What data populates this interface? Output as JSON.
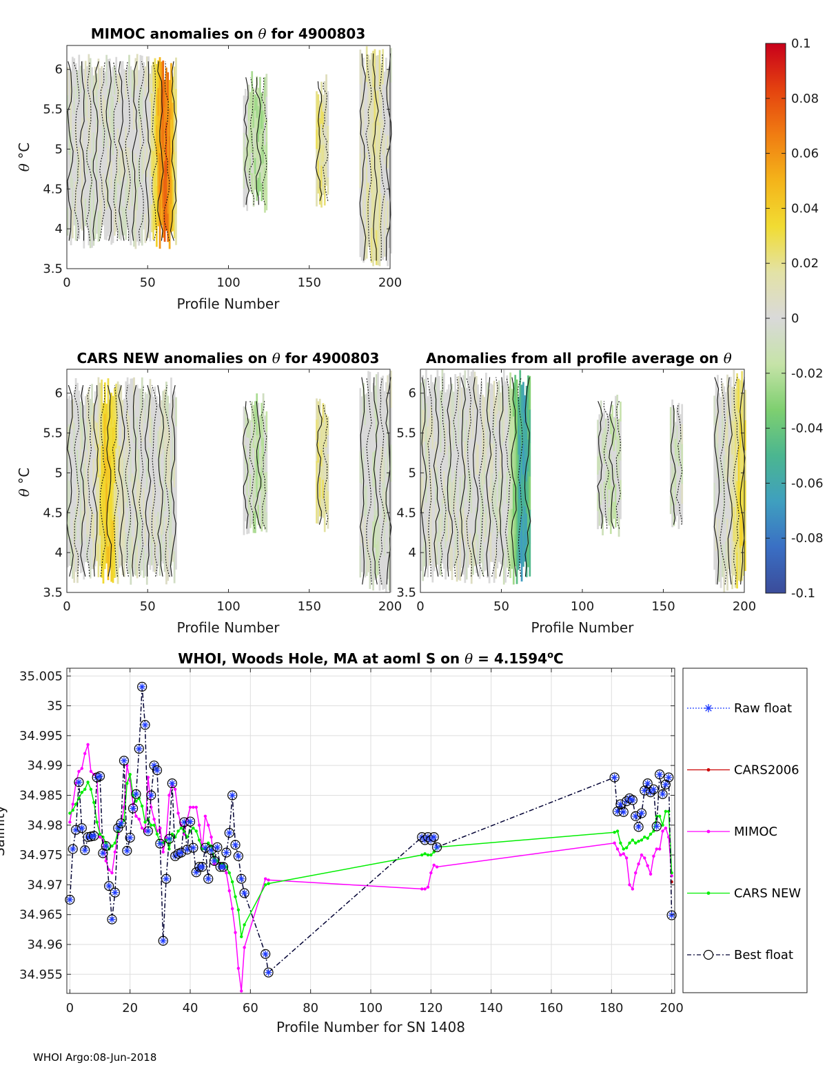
{
  "footer": "WHOI Argo:08-Jun-2018",
  "chart_data": [
    {
      "type": "heatmap",
      "title_pre": "MIMOC anomalies on ",
      "title_sym": "θ",
      "title_post": "  for 4900803",
      "xlabel": "Profile Number",
      "ylabel_sym": "θ",
      "ylabel_unit": "°C",
      "xlim": [
        0,
        200
      ],
      "ylim": [
        3.5,
        6.3
      ],
      "xticks": [
        "0",
        "50",
        "100",
        "150",
        "200"
      ],
      "yticks": [
        "3.5",
        "4",
        "4.5",
        "5",
        "5.5",
        "6"
      ],
      "column_groups": [
        {
          "x0": 0,
          "x1": 68,
          "ymin": 3.75,
          "ymax": 6.2,
          "peak": 0.07,
          "peak_at": 60
        },
        {
          "x0": 109,
          "x1": 124,
          "ymin": 4.2,
          "ymax": 6.0,
          "peak": -0.02,
          "peak_at": 118
        },
        {
          "x0": 154,
          "x1": 162,
          "ymin": 4.25,
          "ymax": 5.95,
          "peak": 0.02,
          "peak_at": 156
        },
        {
          "x0": 181,
          "x1": 201,
          "ymin": 3.5,
          "ymax": 6.3,
          "peak": 0.015,
          "peak_at": 190
        }
      ]
    },
    {
      "type": "heatmap",
      "title_pre": "CARS NEW anomalies on ",
      "title_sym": "θ",
      "title_post": " for 4900803",
      "xlabel": "Profile Number",
      "ylabel_sym": "θ",
      "ylabel_unit": "°C",
      "xlim": [
        0,
        200
      ],
      "ylim": [
        3.5,
        6.3
      ],
      "xticks": [
        "0",
        "50",
        "100",
        "150",
        "200"
      ],
      "yticks": [
        "3.5",
        "4",
        "4.5",
        "5",
        "5.5",
        "6"
      ],
      "column_groups": [
        {
          "x0": 0,
          "x1": 68,
          "ymin": 3.6,
          "ymax": 6.2,
          "peak": 0.04,
          "peak_at": 25
        },
        {
          "x0": 109,
          "x1": 124,
          "ymin": 4.2,
          "ymax": 6.0,
          "peak": -0.015,
          "peak_at": 118
        },
        {
          "x0": 154,
          "x1": 162,
          "ymin": 4.25,
          "ymax": 5.95,
          "peak": 0.02,
          "peak_at": 156
        },
        {
          "x0": 181,
          "x1": 201,
          "ymin": 3.5,
          "ymax": 6.3,
          "peak": -0.005,
          "peak_at": 190
        }
      ]
    },
    {
      "type": "heatmap",
      "title_pre": "Anomalies from all profile average on ",
      "title_sym": "θ",
      "title_post": "",
      "xlabel": "Profile Number",
      "xlim": [
        0,
        200
      ],
      "ylim": [
        3.5,
        6.3
      ],
      "xticks": [
        "0",
        "50",
        "100",
        "150",
        "200"
      ],
      "yticks": [
        "3.5",
        "4",
        "4.5",
        "5",
        "5.5",
        "6"
      ],
      "column_groups": [
        {
          "x0": 0,
          "x1": 68,
          "ymin": 3.6,
          "ymax": 6.3,
          "peak": -0.06,
          "peak_at": 63
        },
        {
          "x0": 109,
          "x1": 124,
          "ymin": 4.2,
          "ymax": 6.0,
          "peak": -0.01,
          "peak_at": 118
        },
        {
          "x0": 154,
          "x1": 162,
          "ymin": 4.25,
          "ymax": 5.95,
          "peak": -0.005,
          "peak_at": 156
        },
        {
          "x0": 181,
          "x1": 201,
          "ymin": 3.5,
          "ymax": 6.3,
          "peak": 0.03,
          "peak_at": 198
        }
      ]
    },
    {
      "type": "colorbar",
      "range": [
        -0.1,
        0.1
      ],
      "ticks": [
        "0.1",
        "0.08",
        "0.06",
        "0.04",
        "0.02",
        "0",
        "-0.02",
        "-0.04",
        "-0.06",
        "-0.08",
        "-0.1"
      ],
      "colors": [
        "#3b4c9a",
        "#3a6fc4",
        "#3f9fbf",
        "#4bb690",
        "#7ecf70",
        "#c6e3a8",
        "#d9d9d9",
        "#e3e2a6",
        "#f1dc33",
        "#f4b41a",
        "#f07d12",
        "#e4420f",
        "#c8001b"
      ]
    },
    {
      "type": "line",
      "title_pre": "WHOI, Woods Hole, MA at aoml S on ",
      "title_sym": "θ",
      "title_mid": " = 4.1594",
      "title_unit": "o",
      "title_post": "C",
      "xlabel": "Profile Number for SN 1408",
      "ylabel": "Salinity",
      "xlim": [
        -1,
        201
      ],
      "ylim": [
        34.9518,
        35.0063
      ],
      "xticks": [
        "0",
        "20",
        "40",
        "60",
        "80",
        "100",
        "120",
        "140",
        "160",
        "180",
        "200"
      ],
      "yticks": [
        "34.955",
        "34.96",
        "34.965",
        "34.97",
        "34.975",
        "34.98",
        "34.985",
        "34.99",
        "34.995",
        "35",
        "35.005"
      ],
      "legend": [
        "Raw float",
        "CARS2006",
        "MIMOC",
        "CARS NEW",
        "Best float"
      ],
      "colors": {
        "raw": "#1f3cff",
        "cars2006": "#cc0000",
        "mimoc": "#ff00ff",
        "carsnew": "#00ee00",
        "best": "#000033"
      },
      "series": [
        {
          "name": "Best float",
          "x": [
            0,
            1,
            2,
            3,
            4,
            5,
            6,
            7,
            8,
            9,
            10,
            11,
            12,
            13,
            14,
            15,
            16,
            17,
            18,
            19,
            20,
            21,
            22,
            23,
            24,
            25,
            26,
            27,
            28,
            29,
            30,
            31,
            32,
            33,
            34,
            35,
            36,
            37,
            38,
            39,
            40,
            41,
            42,
            43,
            44,
            45,
            46,
            47,
            48,
            49,
            50,
            51,
            52,
            53,
            54,
            55,
            56,
            57,
            58,
            65,
            66,
            117,
            118,
            119,
            120,
            121,
            122,
            181,
            182,
            183,
            184,
            185,
            186,
            187,
            188,
            189,
            190,
            191,
            192,
            193,
            194,
            195,
            196,
            197,
            198,
            199,
            200
          ],
          "y": [
            34.9675,
            34.976,
            34.9792,
            34.9872,
            34.9795,
            34.9758,
            34.978,
            34.9781,
            34.9782,
            34.988,
            34.9882,
            34.9753,
            34.9765,
            34.9698,
            34.9642,
            34.9687,
            34.9795,
            34.9803,
            34.9908,
            34.9757,
            34.9779,
            34.9828,
            34.9852,
            34.9928,
            35.0032,
            34.9968,
            34.979,
            34.985,
            34.99,
            34.9892,
            34.9769,
            34.9606,
            34.971,
            34.9777,
            34.987,
            34.9748,
            34.9752,
            34.9754,
            34.9805,
            34.9759,
            34.9806,
            34.9762,
            34.9721,
            34.973,
            34.973,
            34.9762,
            34.971,
            34.9758,
            34.974,
            34.9763,
            34.973,
            34.973,
            34.9754,
            34.9787,
            34.985,
            34.9767,
            34.9748,
            34.971,
            34.9686,
            34.9584,
            34.9553,
            34.978,
            34.9775,
            34.978,
            34.9775,
            34.978,
            34.9763,
            34.988,
            34.9823,
            34.9835,
            34.9822,
            34.984,
            34.9845,
            34.9842,
            34.9815,
            34.9797,
            34.982,
            34.9858,
            34.987,
            34.9855,
            34.986,
            34.9798,
            34.9885,
            34.9852,
            34.9868,
            34.988,
            34.9649
          ]
        },
        {
          "name": "MIMOC",
          "x": [
            0,
            1,
            2,
            3,
            4,
            5,
            6,
            7,
            8,
            9,
            10,
            11,
            12,
            13,
            14,
            15,
            16,
            17,
            18,
            19,
            20,
            21,
            22,
            23,
            24,
            25,
            26,
            27,
            28,
            29,
            30,
            31,
            32,
            33,
            34,
            35,
            36,
            37,
            38,
            39,
            40,
            41,
            42,
            43,
            44,
            45,
            46,
            47,
            48,
            49,
            50,
            51,
            52,
            53,
            54,
            55,
            56,
            57,
            58,
            65,
            66,
            117,
            118,
            119,
            120,
            121,
            122,
            181,
            182,
            183,
            184,
            185,
            186,
            187,
            188,
            189,
            190,
            191,
            192,
            193,
            194,
            195,
            196,
            197,
            198,
            199,
            200
          ],
          "y": [
            34.9805,
            34.9835,
            34.987,
            34.989,
            34.9895,
            34.992,
            34.9935,
            34.989,
            34.9885,
            34.988,
            34.978,
            34.9775,
            34.974,
            34.9725,
            34.972,
            34.9755,
            34.9785,
            34.98,
            34.983,
            34.99,
            34.9875,
            34.9835,
            34.9815,
            34.981,
            34.9795,
            34.979,
            34.988,
            34.983,
            34.981,
            34.979,
            34.9795,
            34.9755,
            34.978,
            34.985,
            34.987,
            34.986,
            34.982,
            34.98,
            34.9785,
            34.981,
            34.983,
            34.983,
            34.983,
            34.98,
            34.976,
            34.9815,
            34.98,
            34.978,
            34.9735,
            34.974,
            34.973,
            34.9735,
            34.972,
            34.969,
            34.966,
            34.962,
            34.956,
            34.9522,
            34.9595,
            34.971,
            34.9708,
            34.9693,
            34.9693,
            34.9696,
            34.972,
            34.9733,
            34.973,
            34.977,
            34.976,
            34.975,
            34.9752,
            34.9745,
            34.97,
            34.9693,
            34.972,
            34.9735,
            34.975,
            34.9745,
            34.9732,
            34.9718,
            34.9748,
            34.976,
            34.976,
            34.979,
            34.9795,
            34.978,
            34.9715
          ]
        },
        {
          "name": "CARS NEW",
          "x": [
            0,
            1,
            2,
            3,
            4,
            5,
            6,
            7,
            8,
            9,
            10,
            11,
            12,
            13,
            14,
            15,
            16,
            17,
            18,
            19,
            20,
            21,
            22,
            23,
            24,
            25,
            26,
            27,
            28,
            29,
            30,
            31,
            32,
            33,
            34,
            35,
            36,
            37,
            38,
            39,
            40,
            41,
            42,
            43,
            44,
            45,
            46,
            47,
            48,
            49,
            50,
            51,
            52,
            53,
            54,
            55,
            56,
            57,
            58,
            65,
            66,
            117,
            118,
            119,
            120,
            121,
            122,
            181,
            182,
            183,
            184,
            185,
            186,
            187,
            188,
            189,
            190,
            191,
            192,
            193,
            194,
            195,
            196,
            197,
            198,
            199,
            200
          ],
          "y": [
            34.982,
            34.9825,
            34.9835,
            34.9845,
            34.9855,
            34.986,
            34.9872,
            34.986,
            34.9838,
            34.9805,
            34.9785,
            34.978,
            34.977,
            34.976,
            34.9765,
            34.977,
            34.979,
            34.98,
            34.9808,
            34.987,
            34.9885,
            34.985,
            34.984,
            34.9845,
            34.9832,
            34.9805,
            34.981,
            34.98,
            34.98,
            34.9785,
            34.977,
            34.977,
            34.9775,
            34.976,
            34.9785,
            34.978,
            34.979,
            34.9795,
            34.979,
            34.978,
            34.979,
            34.9795,
            34.979,
            34.9775,
            34.976,
            34.976,
            34.977,
            34.9765,
            34.9745,
            34.974,
            34.9735,
            34.9735,
            34.973,
            34.972,
            34.9705,
            34.968,
            34.9658,
            34.9613,
            34.9633,
            34.97,
            34.9702,
            34.975,
            34.9752,
            34.975,
            34.975,
            34.9755,
            34.9763,
            34.9788,
            34.979,
            34.977,
            34.976,
            34.9762,
            34.977,
            34.9775,
            34.977,
            34.9773,
            34.9775,
            34.978,
            34.9778,
            34.9785,
            34.979,
            34.9815,
            34.9815,
            34.98,
            34.9823,
            34.9823,
            34.972
          ]
        },
        {
          "name": "CARS2006",
          "x": [
            200
          ],
          "y": [
            34.9705
          ]
        },
        {
          "name": "Raw float",
          "x": [],
          "y": []
        }
      ]
    }
  ]
}
